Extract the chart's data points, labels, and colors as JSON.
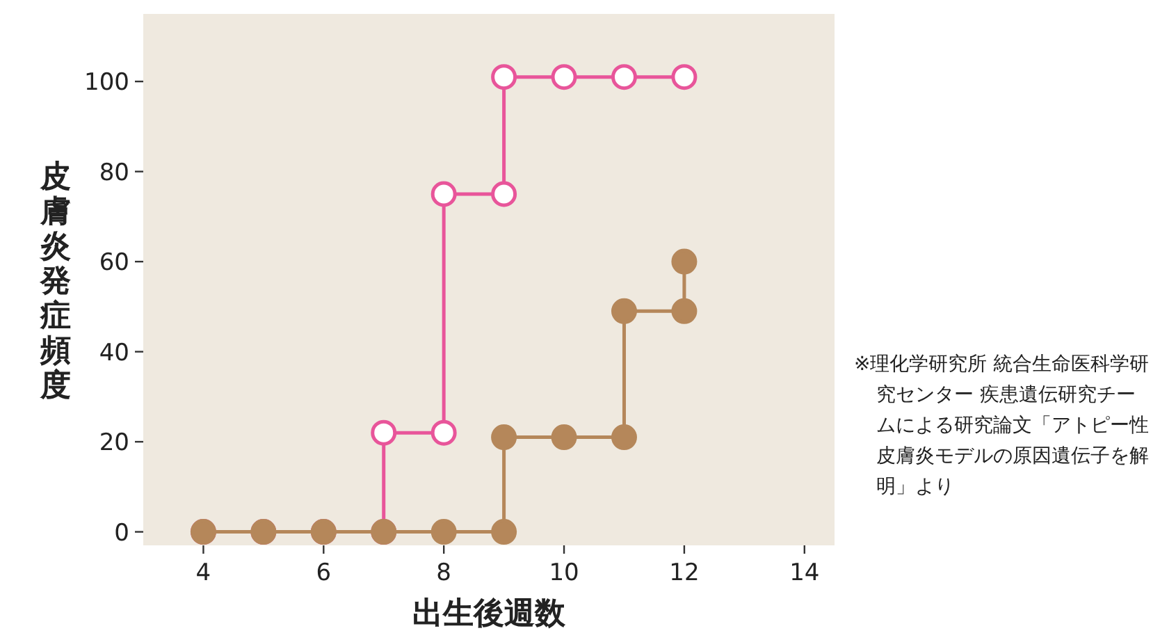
{
  "chart_data": {
    "type": "line",
    "xlabel": "出生後週数",
    "ylabel": "皮膚炎発症頻度",
    "xlim": [
      3,
      14.5
    ],
    "xticks": [
      4,
      6,
      8,
      10,
      12,
      14
    ],
    "ylim": [
      -3,
      115
    ],
    "yticks": [
      0,
      20,
      40,
      60,
      80,
      100
    ],
    "marker": "circle",
    "series": [
      {
        "color": "#e8559a",
        "x": [
          4,
          5,
          6,
          7,
          7,
          8,
          8,
          9,
          9,
          10,
          11,
          12
        ],
        "values": [
          0,
          0,
          0,
          0,
          22,
          22,
          75,
          75,
          101,
          101,
          101,
          101
        ]
      },
      {
        "color": "#b5875a",
        "x": [
          4,
          5,
          6,
          7,
          8,
          9,
          9,
          10,
          11,
          11,
          12,
          12
        ],
        "values": [
          0,
          0,
          0,
          0,
          0,
          0,
          21,
          21,
          21,
          49,
          49,
          60
        ]
      }
    ],
    "annotations": [
      "※理化学研究所 統合生命医科学研究センター 疾患遺伝研究チームによる研究論文「アトピー性皮膚炎モデルの原因遺伝子を解明」より"
    ]
  }
}
